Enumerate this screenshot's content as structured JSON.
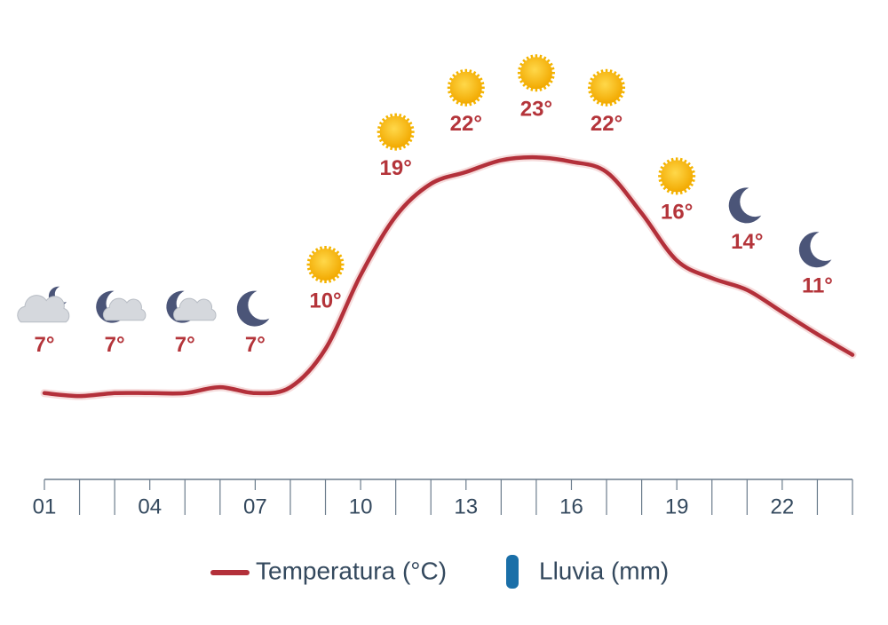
{
  "chart_data": {
    "type": "line",
    "x": [
      1,
      2,
      3,
      4,
      5,
      6,
      7,
      8,
      9,
      10,
      11,
      12,
      13,
      14,
      15,
      16,
      17,
      18,
      19,
      20,
      21,
      22,
      23,
      24
    ],
    "series": [
      {
        "name": "Temperatura (°C)",
        "color": "#b3303a",
        "values": [
          7,
          6.8,
          7,
          7,
          7,
          7.4,
          7,
          7.4,
          10,
          15,
          19,
          21.2,
          22,
          22.8,
          23,
          22.7,
          22,
          19.2,
          16,
          14.8,
          14,
          12.5,
          11,
          9.6
        ],
        "value_labels": [
          "7°",
          null,
          "7°",
          null,
          "7°",
          null,
          "7°",
          null,
          "10°",
          null,
          "19°",
          null,
          "22°",
          null,
          "23°",
          null,
          "22°",
          null,
          "16°",
          null,
          "14°",
          null,
          "11°",
          null
        ]
      },
      {
        "name": "Lluvia (mm)",
        "color": "#1a6fa8",
        "values": [
          0,
          0,
          0,
          0,
          0,
          0,
          0,
          0,
          0,
          0,
          0,
          0,
          0,
          0,
          0,
          0,
          0,
          0,
          0,
          0,
          0,
          0,
          0,
          0
        ]
      }
    ],
    "xlim": [
      1,
      24
    ],
    "xticks": [
      {
        "value": 1,
        "label": "01"
      },
      {
        "value": 4,
        "label": "04"
      },
      {
        "value": 7,
        "label": "07"
      },
      {
        "value": 10,
        "label": "10"
      },
      {
        "value": 13,
        "label": "13"
      },
      {
        "value": 16,
        "label": "16"
      },
      {
        "value": 19,
        "label": "19"
      },
      {
        "value": 22,
        "label": "22"
      }
    ],
    "ylim": [
      0,
      30
    ]
  }
}
